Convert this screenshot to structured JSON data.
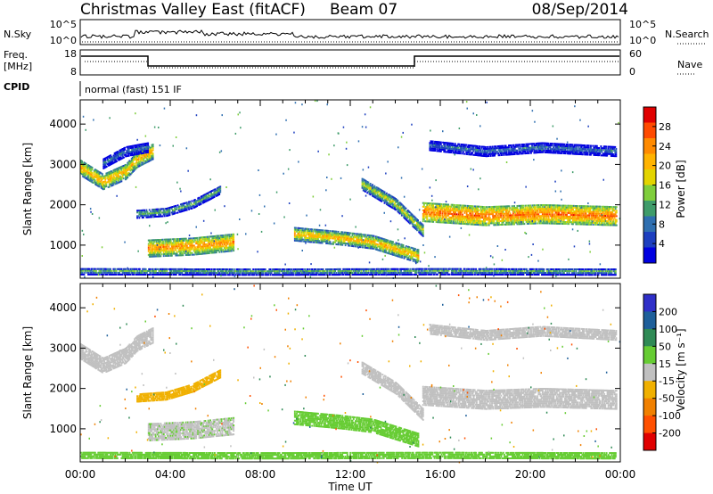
{
  "header": {
    "station": "Christmas Valley East (fitACF)",
    "beam": "Beam 07",
    "date": "08/Sep/2014"
  },
  "panels": {
    "nsky": {
      "label": "N.Sky",
      "left_tick_top": "10^5",
      "left_tick_bottom": "10^0",
      "right_tick_top": "10^5",
      "right_tick_bottom": "10^0",
      "right_label": "N.Search"
    },
    "freq": {
      "label_line1": "Freq.",
      "label_line2": "[MHz]",
      "left_tick_top": "18",
      "left_tick_bottom": "8",
      "right_tick_top": "60",
      "right_tick_bottom": "0",
      "right_label": "Nave"
    },
    "cpid": {
      "label": "CPID",
      "value": "normal (fast) 151 IF"
    }
  },
  "colorbars": {
    "power": {
      "title": "Power [dB]",
      "ticks": [
        "28",
        "24",
        "20",
        "16",
        "12",
        "8",
        "4"
      ],
      "colors": [
        "#e00000",
        "#ff4a00",
        "#ff8a00",
        "#ffb300",
        "#e3d400",
        "#7fce3c",
        "#3f9c6a",
        "#2f6fb0",
        "#1d3fbf",
        "#0000e0"
      ]
    },
    "velocity": {
      "title": "Velocity [m s⁻¹]",
      "ticks": [
        "200",
        "100",
        "50",
        "15",
        "-15",
        "-50",
        "-100",
        "-200"
      ],
      "colors": [
        "#2f2fc8",
        "#1e5f9a",
        "#2f8a55",
        "#66cc33",
        "#c0c0c0",
        "#f0b000",
        "#f08000",
        "#ff5000",
        "#e00000"
      ]
    }
  },
  "chart_data": [
    {
      "type": "heatmap",
      "name": "power",
      "xlabel": "",
      "ylabel": "Slant Range [km]",
      "ylim": [
        180,
        4600
      ],
      "yticks": [
        "1000",
        "2000",
        "3000",
        "4000"
      ],
      "xlim_hours": [
        0,
        24
      ],
      "xticks": [
        "00:00",
        "04:00",
        "08:00",
        "12:00",
        "16:00",
        "20:00",
        "00:00"
      ],
      "scale_label": "Power [dB]",
      "regions": [
        {
          "t": [
            0.0,
            1.0,
            2.0,
            2.5,
            3.2
          ],
          "range_center": [
            2900,
            2550,
            2800,
            3100,
            3300
          ],
          "width": 380,
          "value": 22
        },
        {
          "t": [
            1.0,
            2.0,
            3.0
          ],
          "range_center": [
            3000,
            3300,
            3400
          ],
          "width": 240,
          "value": 10
        },
        {
          "t": [
            2.5,
            3.8,
            5.0,
            6.2
          ],
          "range_center": [
            1750,
            1800,
            2000,
            2350
          ],
          "width": 200,
          "value": 14
        },
        {
          "t": [
            3.0,
            5.0,
            6.8
          ],
          "range_center": [
            900,
            950,
            1050
          ],
          "width": 420,
          "value": 24
        },
        {
          "t": [
            9.5,
            11.5,
            13.0,
            15.0
          ],
          "range_center": [
            1250,
            1150,
            1050,
            700
          ],
          "width": 320,
          "value": 22
        },
        {
          "t": [
            12.5,
            14.0,
            15.2
          ],
          "range_center": [
            2500,
            2000,
            1350
          ],
          "width": 300,
          "value": 18
        },
        {
          "t": [
            15.2,
            18.0,
            20.5,
            23.8
          ],
          "range_center": [
            1800,
            1700,
            1750,
            1700
          ],
          "width": 460,
          "value": 26
        },
        {
          "t": [
            15.5,
            18.0,
            20.5,
            23.8
          ],
          "range_center": [
            3450,
            3300,
            3400,
            3300
          ],
          "width": 240,
          "value": 10
        },
        {
          "t": [
            0.0,
            8.0,
            16.0,
            23.8
          ],
          "range_center": [
            330,
            320,
            330,
            320
          ],
          "width": 160,
          "value": 14
        }
      ]
    },
    {
      "type": "heatmap",
      "name": "velocity",
      "xlabel": "Time UT",
      "ylabel": "Slant Range [km]",
      "ylim": [
        180,
        4600
      ],
      "yticks": [
        "1000",
        "2000",
        "3000",
        "4000"
      ],
      "xlim_hours": [
        0,
        24
      ],
      "xticks": [
        "00:00",
        "04:00",
        "08:00",
        "12:00",
        "16:00",
        "20:00",
        "00:00"
      ],
      "scale_label": "Velocity [m s⁻¹]",
      "regions": [
        {
          "t": [
            0.0,
            1.0,
            2.0,
            2.5,
            3.2
          ],
          "range_center": [
            2900,
            2550,
            2800,
            3100,
            3300
          ],
          "width": 380,
          "value": 0
        },
        {
          "t": [
            2.5,
            3.8,
            5.0,
            6.2
          ],
          "range_center": [
            1750,
            1800,
            2000,
            2350
          ],
          "width": 200,
          "value": -30
        },
        {
          "t": [
            3.0,
            5.0,
            6.8
          ],
          "range_center": [
            900,
            950,
            1050
          ],
          "width": 420,
          "value": 5
        },
        {
          "t": [
            9.5,
            11.5,
            13.0,
            15.0
          ],
          "range_center": [
            1250,
            1150,
            1050,
            700
          ],
          "width": 320,
          "value": 30
        },
        {
          "t": [
            12.5,
            14.0,
            15.2
          ],
          "range_center": [
            2500,
            2000,
            1350
          ],
          "width": 300,
          "value": 0
        },
        {
          "t": [
            15.2,
            18.0,
            20.5,
            23.8
          ],
          "range_center": [
            1800,
            1700,
            1750,
            1700
          ],
          "width": 460,
          "value": 0
        },
        {
          "t": [
            15.5,
            18.0,
            20.5,
            23.8
          ],
          "range_center": [
            3450,
            3300,
            3400,
            3300
          ],
          "width": 240,
          "value": 0
        },
        {
          "t": [
            0.0,
            8.0,
            16.0,
            23.8
          ],
          "range_center": [
            330,
            320,
            330,
            320
          ],
          "width": 160,
          "value": 30
        }
      ]
    }
  ]
}
